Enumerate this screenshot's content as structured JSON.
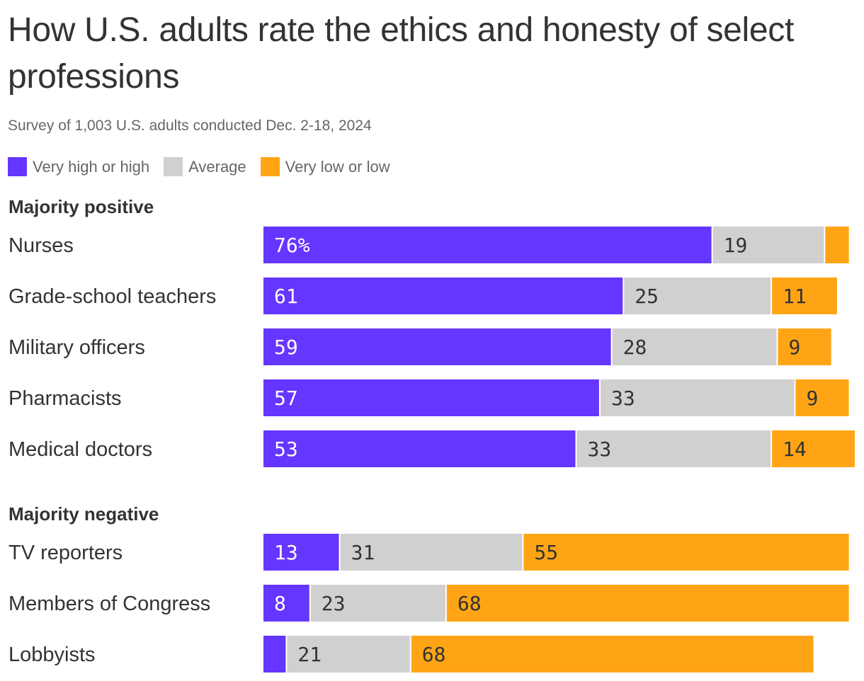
{
  "colors": {
    "high": "#6536FF",
    "average": "#D0D0D0",
    "low": "#FFA515",
    "text": "#333333",
    "muted": "#666666"
  },
  "header": {
    "title": "How U.S. adults rate the ethics and honesty of select professions",
    "subtitle": "Survey of 1,003 U.S. adults conducted Dec. 2-18, 2024"
  },
  "legend": [
    {
      "label": "Very high or high",
      "color": "#6536FF"
    },
    {
      "label": "Average",
      "color": "#D0D0D0"
    },
    {
      "label": "Very low or low",
      "color": "#FFA515"
    }
  ],
  "chart_data": {
    "type": "bar",
    "orientation": "horizontal",
    "stacked": true,
    "title": "How U.S. adults rate the ethics and honesty of select professions",
    "subtitle": "Survey of 1,003 U.S. adults conducted Dec. 2-18, 2024",
    "unit": "%",
    "xlim": [
      0,
      100
    ],
    "series_names": [
      "Very high or high",
      "Average",
      "Very low or low"
    ],
    "groups": [
      {
        "name": "Majority positive",
        "rows": [
          {
            "category": "Nurses",
            "values": [
              76,
              19,
              4
            ],
            "labels": [
              "76%",
              "19",
              ""
            ]
          },
          {
            "category": "Grade-school teachers",
            "values": [
              61,
              25,
              11
            ],
            "labels": [
              "61",
              "25",
              "11"
            ]
          },
          {
            "category": "Military officers",
            "values": [
              59,
              28,
              9
            ],
            "labels": [
              "59",
              "28",
              "9"
            ]
          },
          {
            "category": "Pharmacists",
            "values": [
              57,
              33,
              9
            ],
            "labels": [
              "57",
              "33",
              "9"
            ]
          },
          {
            "category": "Medical doctors",
            "values": [
              53,
              33,
              14
            ],
            "labels": [
              "53",
              "33",
              "14"
            ]
          }
        ]
      },
      {
        "name": "Majority negative",
        "rows": [
          {
            "category": "TV reporters",
            "values": [
              13,
              31,
              55
            ],
            "labels": [
              "13",
              "31",
              "55"
            ]
          },
          {
            "category": "Members of Congress",
            "values": [
              8,
              23,
              68
            ],
            "labels": [
              "8",
              "23",
              "68"
            ]
          },
          {
            "category": "Lobbyists",
            "values": [
              4,
              21,
              68
            ],
            "labels": [
              "",
              "21",
              "68"
            ]
          }
        ]
      }
    ]
  }
}
